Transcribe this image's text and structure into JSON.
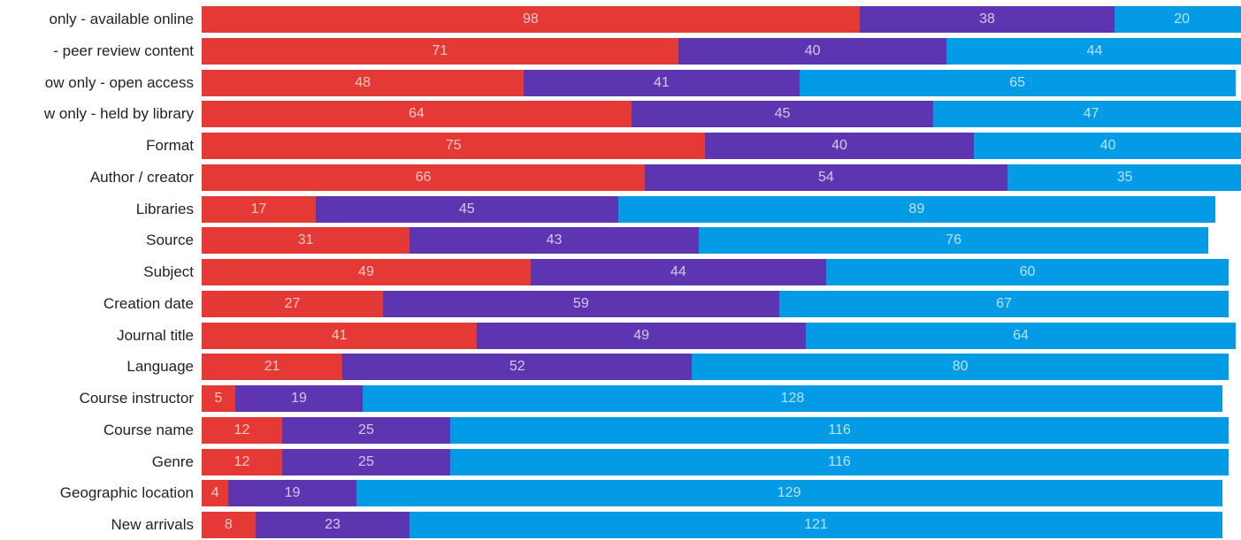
{
  "chart_data": {
    "type": "bar",
    "orientation": "horizontal",
    "stacked": true,
    "categories": [
      "only - available online",
      "- peer review content",
      "ow only - open access",
      "w only - held by library",
      "Format",
      "Author / creator",
      "Libraries",
      "Source",
      "Subject",
      "Creation date",
      "Journal title",
      "Language",
      "Course instructor",
      "Course name",
      "Genre",
      "Geographic location",
      "New arrivals"
    ],
    "series": [
      {
        "color": "#e53935",
        "values": [
          98,
          71,
          48,
          64,
          75,
          66,
          17,
          31,
          49,
          27,
          41,
          21,
          5,
          12,
          12,
          4,
          8
        ]
      },
      {
        "color": "#5e35b1",
        "values": [
          38,
          40,
          41,
          45,
          40,
          54,
          45,
          43,
          44,
          59,
          49,
          52,
          19,
          25,
          25,
          19,
          23
        ]
      },
      {
        "color": "#039be5",
        "values": [
          20,
          44,
          65,
          47,
          40,
          35,
          89,
          76,
          60,
          67,
          64,
          80,
          128,
          116,
          116,
          129,
          121
        ]
      }
    ],
    "data_labels": true,
    "grid": false,
    "legend": "none"
  }
}
